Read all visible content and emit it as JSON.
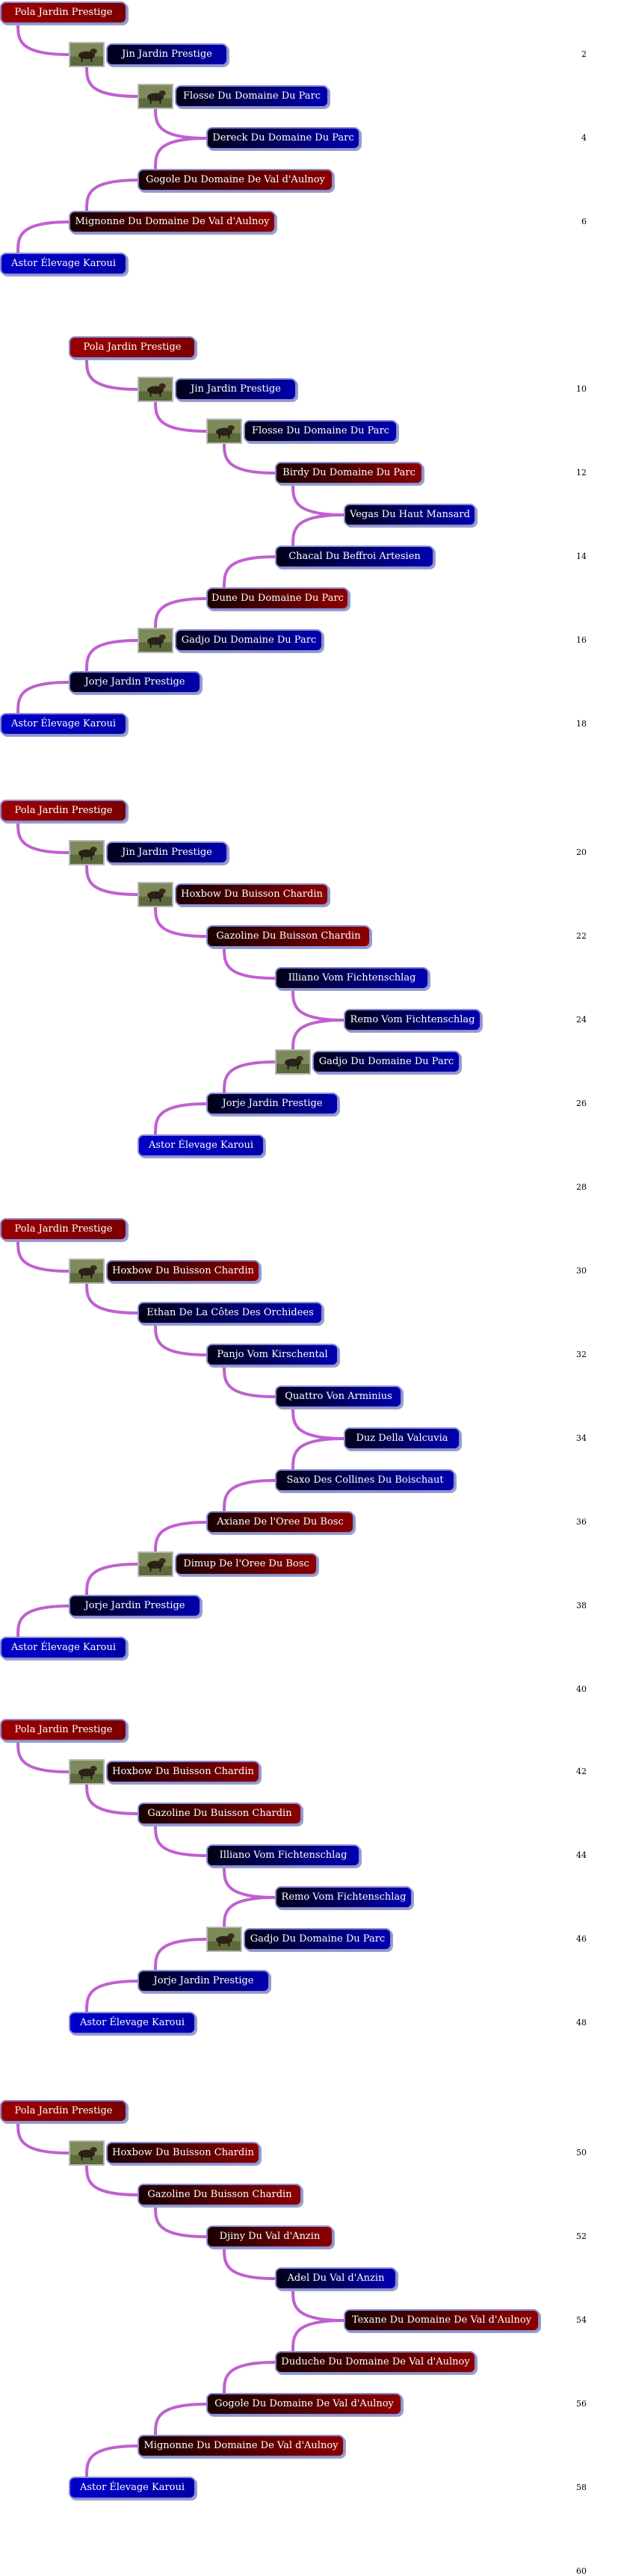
{
  "colors": {
    "connector": "#c060d0",
    "female": "#8c0000",
    "male": "#0000b0"
  },
  "chains": [
    {
      "nodes": [
        {
          "name": "Pola Jardin Prestige",
          "sex": "female"
        },
        {
          "name": "Jin Jardin Prestige",
          "sex": "male",
          "photo": true
        },
        {
          "name": "Flosse Du Domaine Du Parc",
          "sex": "male",
          "photo": true
        },
        {
          "name": "Dereck Du Domaine Du Parc",
          "sex": "male"
        },
        {
          "name": "Gogole Du Domaine De Val d'Aulnoy",
          "sex": "female"
        },
        {
          "name": "Mignonne Du Domaine De Val d'Aulnoy",
          "sex": "female"
        },
        {
          "name": "Astor Élevage Karoui",
          "sex": "male"
        }
      ],
      "labels": [
        "2",
        "4",
        "6"
      ]
    },
    {
      "nodes": [
        {
          "name": "Pola Jardin Prestige",
          "sex": "female"
        },
        {
          "name": "Jin Jardin Prestige",
          "sex": "male",
          "photo": true
        },
        {
          "name": "Flosse Du Domaine Du Parc",
          "sex": "male",
          "photo": true
        },
        {
          "name": "Birdy Du Domaine Du Parc",
          "sex": "female"
        },
        {
          "name": "Vegas Du Haut Mansard",
          "sex": "male"
        },
        {
          "name": "Chacal Du Beffroi Artesien",
          "sex": "male"
        },
        {
          "name": "Dune Du Domaine Du Parc",
          "sex": "female"
        },
        {
          "name": "Gadjo Du Domaine Du Parc",
          "sex": "male",
          "photo": true
        },
        {
          "name": "Jorje Jardin Prestige",
          "sex": "male"
        },
        {
          "name": "Astor Élevage Karoui",
          "sex": "male"
        }
      ],
      "labels": [
        "10",
        "12",
        "14",
        "16",
        "18"
      ]
    },
    {
      "nodes": [
        {
          "name": "Pola Jardin Prestige",
          "sex": "female"
        },
        {
          "name": "Jin Jardin Prestige",
          "sex": "male",
          "photo": true
        },
        {
          "name": "Hoxbow Du Buisson Chardin",
          "sex": "female",
          "photo": true
        },
        {
          "name": "Gazoline Du Buisson Chardin",
          "sex": "female"
        },
        {
          "name": "Illiano Vom Fichtenschlag",
          "sex": "male"
        },
        {
          "name": "Remo Vom Fichtenschlag",
          "sex": "male"
        },
        {
          "name": "Gadjo Du Domaine Du Parc",
          "sex": "male",
          "photo": true
        },
        {
          "name": "Jorje Jardin Prestige",
          "sex": "male"
        },
        {
          "name": "Astor Élevage Karoui",
          "sex": "male"
        }
      ],
      "labels": [
        "20",
        "22",
        "24",
        "26",
        "28"
      ]
    },
    {
      "nodes": [
        {
          "name": "Pola Jardin Prestige",
          "sex": "female"
        },
        {
          "name": "Hoxbow Du Buisson Chardin",
          "sex": "female",
          "photo": true
        },
        {
          "name": "Ethan De La Côtes Des Orchidees",
          "sex": "male"
        },
        {
          "name": "Panjo Vom Kirschental",
          "sex": "male"
        },
        {
          "name": "Quattro Von Arminius",
          "sex": "male"
        },
        {
          "name": "Duz Della Valcuvia",
          "sex": "male"
        },
        {
          "name": "Saxo Des Collines Du Boischaut",
          "sex": "male"
        },
        {
          "name": "Axiane De l'Oree Du Bosc",
          "sex": "female"
        },
        {
          "name": "Dimup De l'Oree Du Bosc",
          "sex": "female",
          "photo": true
        },
        {
          "name": "Jorje Jardin Prestige",
          "sex": "male"
        },
        {
          "name": "Astor Élevage Karoui",
          "sex": "male"
        }
      ],
      "labels": [
        "30",
        "32",
        "34",
        "36",
        "38",
        "40"
      ]
    },
    {
      "nodes": [
        {
          "name": "Pola Jardin Prestige",
          "sex": "female"
        },
        {
          "name": "Hoxbow Du Buisson Chardin",
          "sex": "female",
          "photo": true
        },
        {
          "name": "Gazoline Du Buisson Chardin",
          "sex": "female"
        },
        {
          "name": "Illiano Vom Fichtenschlag",
          "sex": "male"
        },
        {
          "name": "Remo Vom Fichtenschlag",
          "sex": "male"
        },
        {
          "name": "Gadjo Du Domaine Du Parc",
          "sex": "male",
          "photo": true
        },
        {
          "name": "Jorje Jardin Prestige",
          "sex": "male"
        },
        {
          "name": "Astor Élevage Karoui",
          "sex": "male"
        }
      ],
      "labels": [
        "42",
        "44",
        "46",
        "48"
      ]
    },
    {
      "nodes": [
        {
          "name": "Pola Jardin Prestige",
          "sex": "female"
        },
        {
          "name": "Hoxbow Du Buisson Chardin",
          "sex": "female",
          "photo": true
        },
        {
          "name": "Gazoline Du Buisson Chardin",
          "sex": "female"
        },
        {
          "name": "Djiny Du Val d'Anzin",
          "sex": "female"
        },
        {
          "name": "Adel Du Val d'Anzin",
          "sex": "male"
        },
        {
          "name": "Texane Du Domaine De Val d'Aulnoy",
          "sex": "female"
        },
        {
          "name": "Duduche Du Domaine De Val d'Aulnoy",
          "sex": "female"
        },
        {
          "name": "Gogole Du Domaine De Val d'Aulnoy",
          "sex": "female"
        },
        {
          "name": "Mignonne Du Domaine De Val d'Aulnoy",
          "sex": "female"
        },
        {
          "name": "Astor Élevage Karoui",
          "sex": "male"
        }
      ],
      "labels": [
        "50",
        "52",
        "54",
        "56",
        "58",
        "60"
      ]
    }
  ]
}
